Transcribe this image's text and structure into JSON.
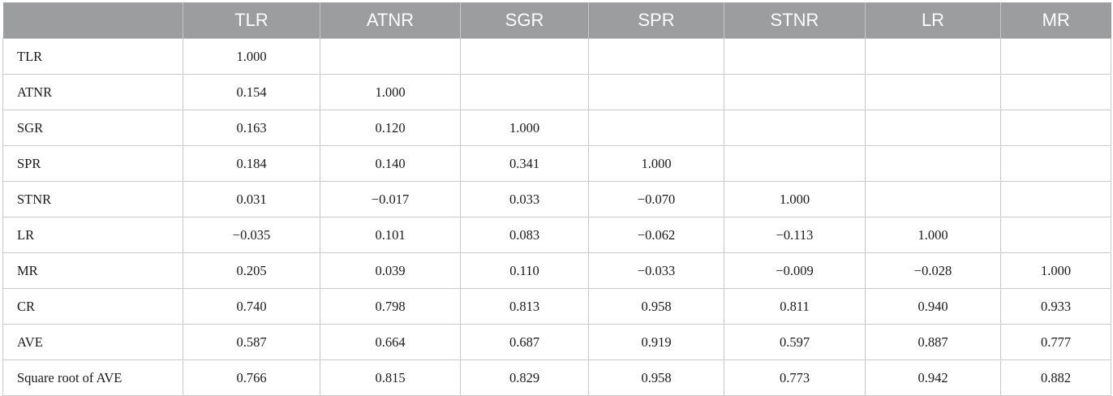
{
  "table": {
    "columns": [
      "",
      "TLR",
      "ATNR",
      "SGR",
      "SPR",
      "STNR",
      "LR",
      "MR"
    ],
    "rows": [
      [
        "TLR",
        "1.000",
        "",
        "",
        "",
        "",
        "",
        ""
      ],
      [
        "ATNR",
        "0.154",
        "1.000",
        "",
        "",
        "",
        "",
        ""
      ],
      [
        "SGR",
        "0.163",
        "0.120",
        "1.000",
        "",
        "",
        "",
        ""
      ],
      [
        "SPR",
        "0.184",
        "0.140",
        "0.341",
        "1.000",
        "",
        "",
        ""
      ],
      [
        "STNR",
        "0.031",
        "−0.017",
        "0.033",
        "−0.070",
        "1.000",
        "",
        ""
      ],
      [
        "LR",
        "−0.035",
        "0.101",
        "0.083",
        "−0.062",
        "−0.113",
        "1.000",
        ""
      ],
      [
        "MR",
        "0.205",
        "0.039",
        "0.110",
        "−0.033",
        "−0.009",
        "−0.028",
        "1.000"
      ],
      [
        "CR",
        "0.740",
        "0.798",
        "0.813",
        "0.958",
        "0.811",
        "0.940",
        "0.933"
      ],
      [
        "AVE",
        "0.587",
        "0.664",
        "0.687",
        "0.919",
        "0.597",
        "0.887",
        "0.777"
      ],
      [
        "Square root of AVE",
        "0.766",
        "0.815",
        "0.829",
        "0.958",
        "0.773",
        "0.942",
        "0.882"
      ]
    ]
  },
  "colors": {
    "header_bg": "#9b9d9e",
    "header_text": "#ffffff",
    "grid_line": "#c9c9c9"
  }
}
